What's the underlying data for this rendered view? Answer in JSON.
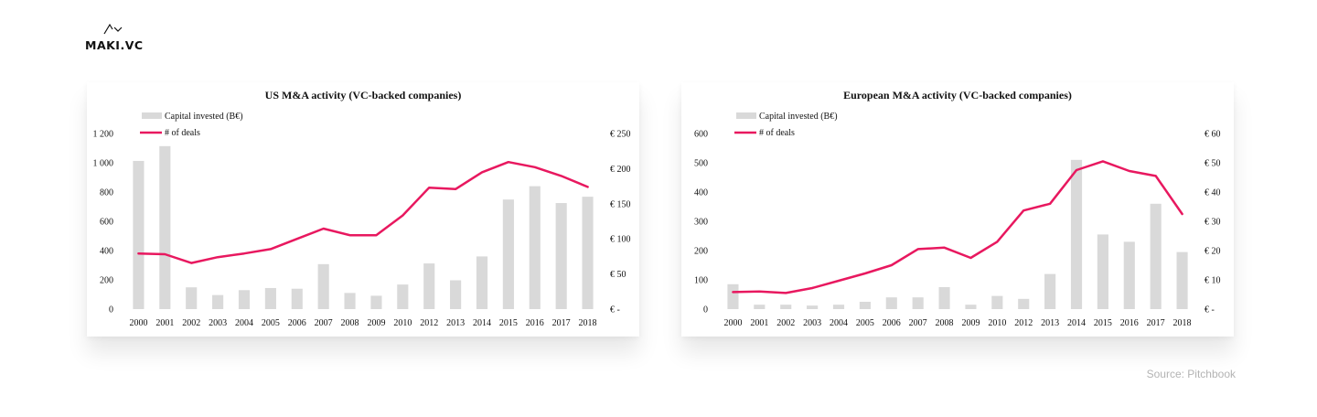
{
  "brand": {
    "name": "MAKI.VC"
  },
  "source": "Source: Pitchbook",
  "colors": {
    "bars": "#d9d9d9",
    "line": "#e8185f",
    "text": "#111111"
  },
  "chart_data": [
    {
      "type": "bar+line",
      "title": "US M&A activity (VC-backed companies)",
      "categories": [
        "2000",
        "2001",
        "2002",
        "2003",
        "2004",
        "2005",
        "2006",
        "2007",
        "2008",
        "2009",
        "2010",
        "2012",
        "2013",
        "2014",
        "2015",
        "2016",
        "2017",
        "2018"
      ],
      "series": [
        {
          "name": "Capital invested (B€)",
          "type": "bar",
          "axis": "right",
          "values": [
            211,
            232,
            31,
            20,
            27,
            30,
            29,
            64,
            23,
            19,
            35,
            65,
            41,
            75,
            156,
            175,
            151,
            160
          ]
        },
        {
          "name": "# of deals",
          "type": "line",
          "axis": "left",
          "values": [
            380,
            375,
            315,
            355,
            380,
            410,
            480,
            550,
            505,
            505,
            640,
            830,
            820,
            935,
            1005,
            970,
            910,
            835
          ]
        }
      ],
      "left_axis": {
        "ticks": [
          "0",
          "200",
          "400",
          "600",
          "800",
          "1 000",
          "1 200"
        ],
        "range": [
          0,
          1200
        ]
      },
      "right_axis": {
        "ticks": [
          "€ -",
          "€ 50",
          "€ 100",
          "€ 150",
          "€ 200",
          "€ 250"
        ],
        "range": [
          0,
          250
        ]
      },
      "legend": "top-left",
      "grid": false
    },
    {
      "type": "bar+line",
      "title": "European M&A activity (VC-backed companies)",
      "categories": [
        "2000",
        "2001",
        "2002",
        "2003",
        "2004",
        "2005",
        "2006",
        "2007",
        "2008",
        "2009",
        "2010",
        "2012",
        "2013",
        "2014",
        "2015",
        "2016",
        "2017",
        "2018"
      ],
      "series": [
        {
          "name": "Capital invested (B€)",
          "type": "bar",
          "axis": "right",
          "values": [
            8.5,
            1.5,
            1.5,
            1.2,
            1.5,
            2.5,
            4,
            4,
            7.5,
            1.5,
            4.5,
            3.5,
            12,
            51,
            25.5,
            23,
            36,
            19.5
          ]
        },
        {
          "name": "# of deals",
          "type": "line",
          "axis": "left",
          "values": [
            58,
            60,
            55,
            72,
            97,
            122,
            150,
            205,
            210,
            175,
            230,
            337,
            360,
            475,
            505,
            472,
            455,
            325
          ]
        }
      ],
      "left_axis": {
        "ticks": [
          "0",
          "100",
          "200",
          "300",
          "400",
          "500",
          "600"
        ],
        "range": [
          0,
          600
        ]
      },
      "right_axis": {
        "ticks": [
          "€ -",
          "€ 10",
          "€ 20",
          "€ 30",
          "€ 40",
          "€ 50",
          "€ 60"
        ],
        "range": [
          0,
          60
        ]
      },
      "legend": "top-left",
      "grid": false
    }
  ]
}
